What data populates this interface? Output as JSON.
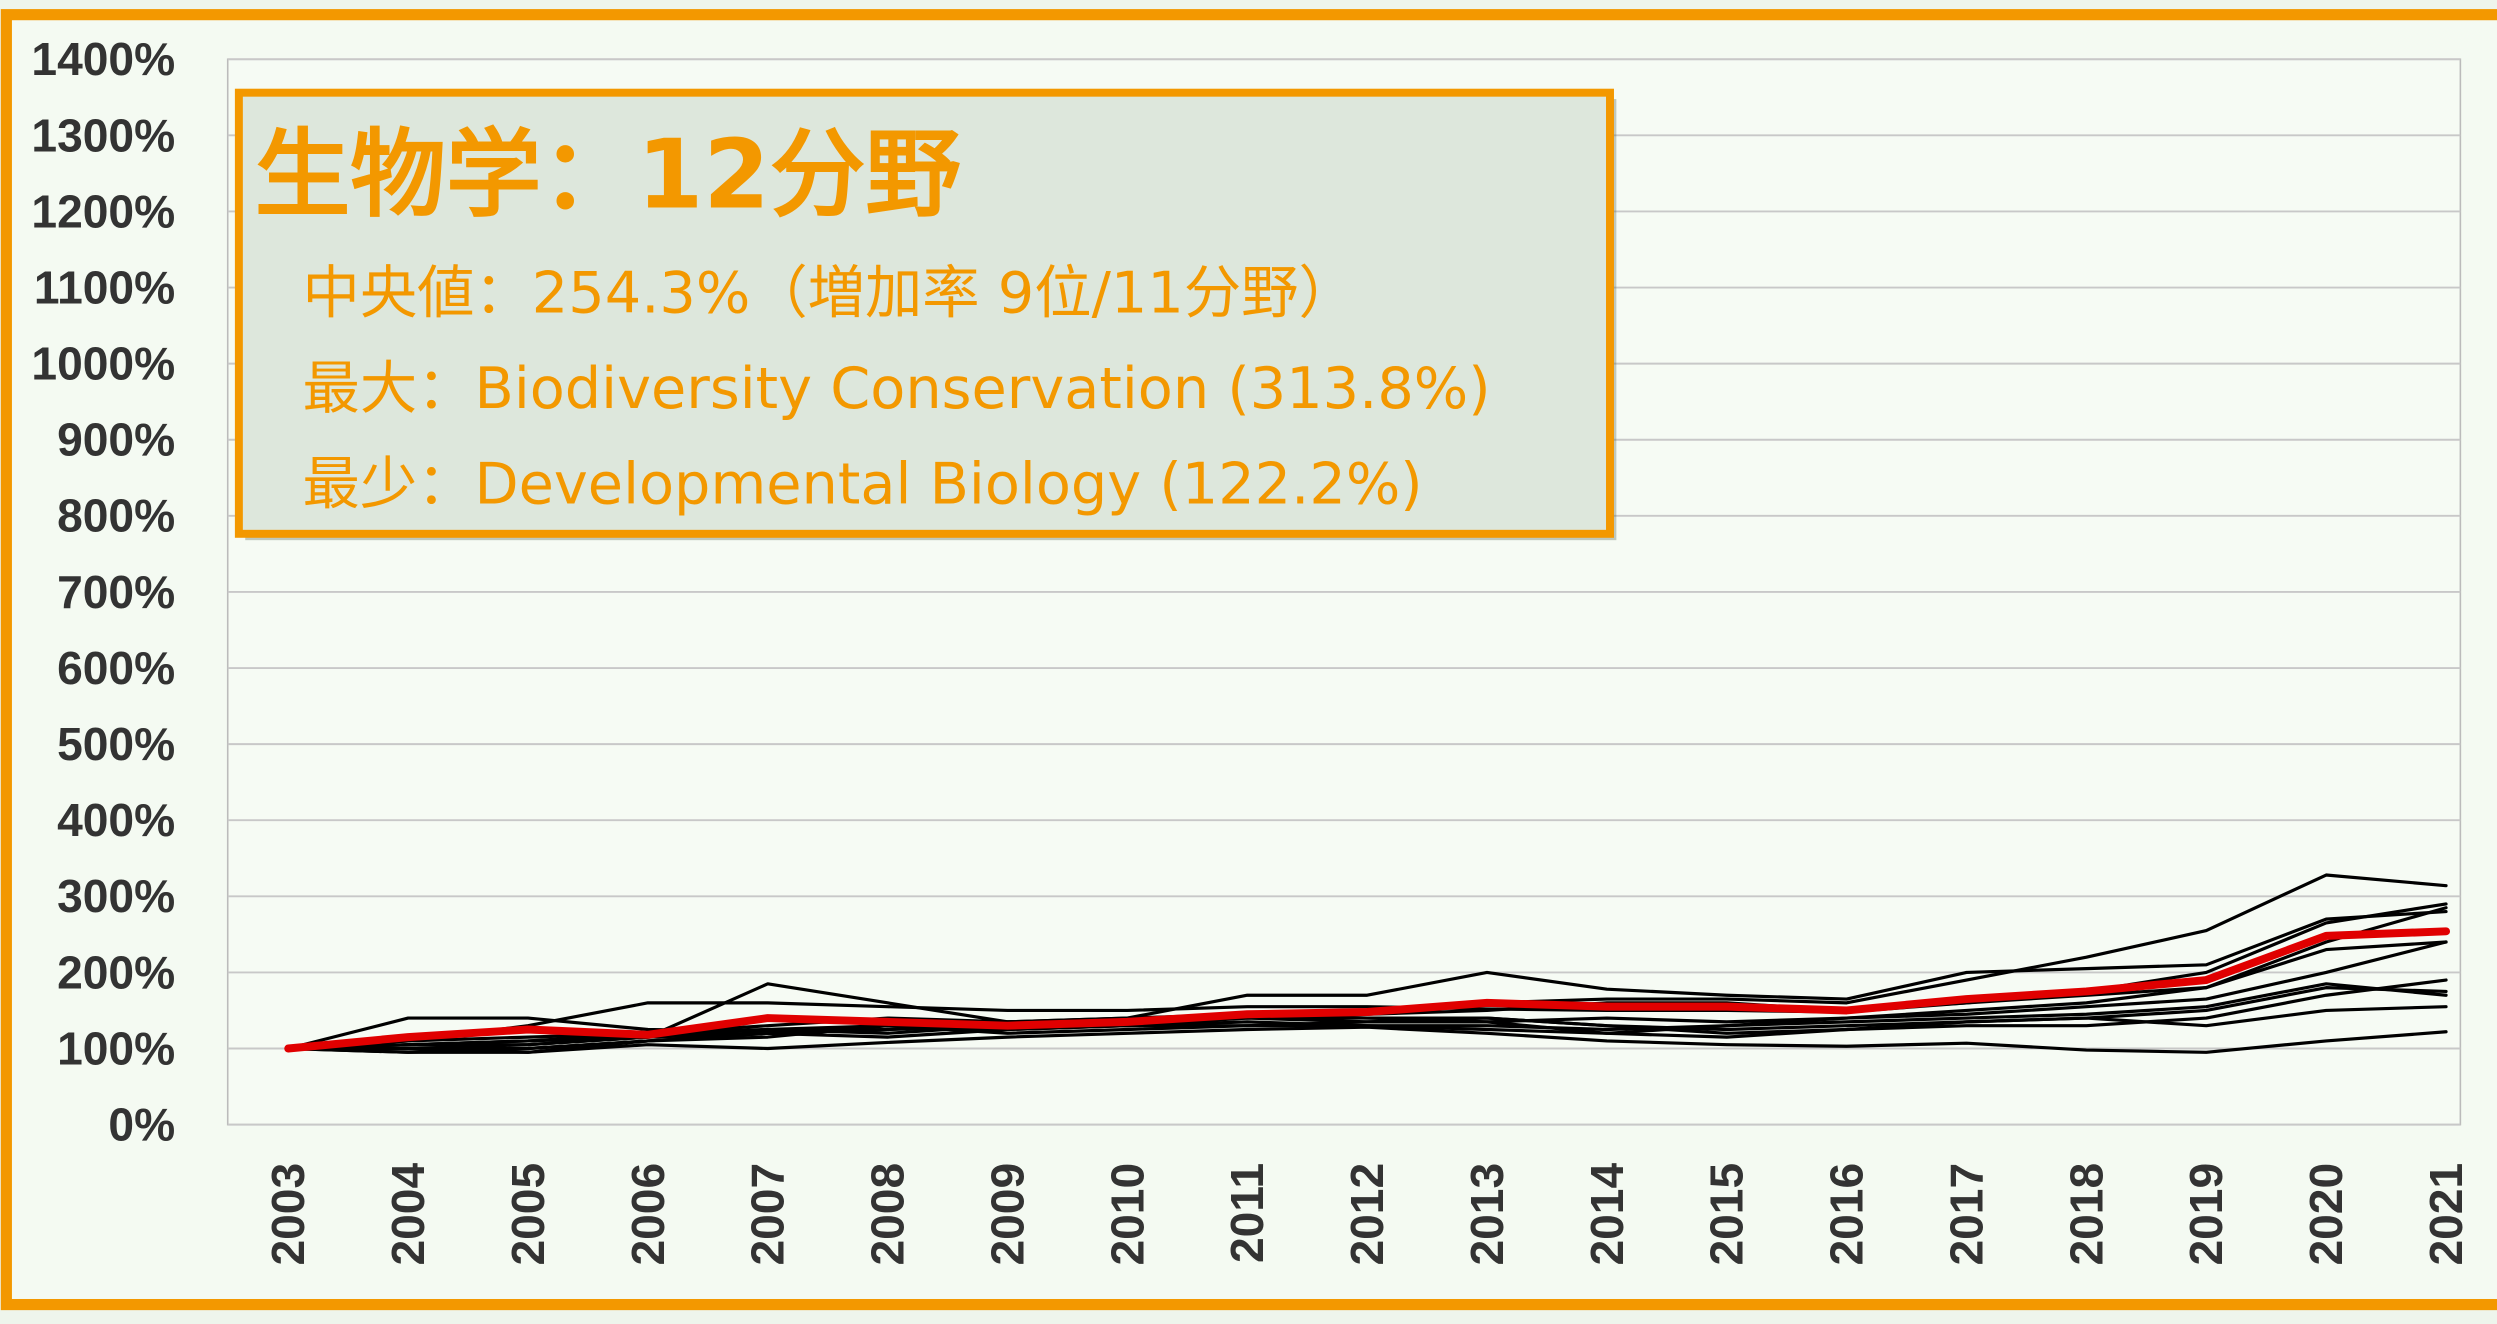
{
  "chart_data": {
    "type": "line",
    "annotation": {
      "title": "生物学：12分野",
      "lines": [
        "中央値：254.3%（増加率 9位/11分野）",
        "最大：Biodiversity Conservation (313.8%)",
        "最少：Developmental Biology (122.2%)"
      ]
    },
    "categories": [
      "2003",
      "2004",
      "2005",
      "2006",
      "2007",
      "2008",
      "2009",
      "2010",
      "2011",
      "2012",
      "2013",
      "2014",
      "2015",
      "2016",
      "2017",
      "2018",
      "2019",
      "2020",
      "2021"
    ],
    "ylim": [
      0,
      1400
    ],
    "yticks": [
      {
        "value": 0,
        "label": "0%"
      },
      {
        "value": 100,
        "label": "100%"
      },
      {
        "value": 200,
        "label": "200%"
      },
      {
        "value": 300,
        "label": "300%"
      },
      {
        "value": 400,
        "label": "400%"
      },
      {
        "value": 500,
        "label": "500%"
      },
      {
        "value": 600,
        "label": "600%"
      },
      {
        "value": 700,
        "label": "700%"
      },
      {
        "value": 800,
        "label": "800%"
      },
      {
        "value": 900,
        "label": "900%"
      },
      {
        "value": 1000,
        "label": "1000%"
      },
      {
        "value": 1100,
        "label": "1100%"
      },
      {
        "value": 1200,
        "label": "1200%"
      },
      {
        "value": 1300,
        "label": "1300%"
      },
      {
        "value": 1400,
        "label": "1400%"
      }
    ],
    "grid": true,
    "series": [
      {
        "color": "#000000",
        "values": [
          100,
          140,
          140,
          125,
          122,
          125,
          130,
          135,
          145,
          150,
          160,
          165,
          165,
          160,
          190,
          220,
          255,
          328,
          314
        ]
      },
      {
        "color": "#000000",
        "values": [
          100,
          95,
          95,
          105,
          100,
          108,
          115,
          120,
          125,
          128,
          120,
          110,
          105,
          103,
          107,
          98,
          95,
          110,
          122
        ]
      },
      {
        "color": "#000000",
        "values": [
          100,
          110,
          130,
          160,
          160,
          155,
          150,
          150,
          155,
          155,
          152,
          150,
          150,
          148,
          160,
          175,
          200,
          265,
          290
        ]
      },
      {
        "color": "#000000",
        "values": [
          100,
          105,
          105,
          115,
          185,
          160,
          135,
          140,
          170,
          170,
          200,
          178,
          170,
          165,
          200,
          205,
          210,
          270,
          280
        ]
      },
      {
        "color": "#000000",
        "values": [
          100,
          100,
          100,
          110,
          120,
          130,
          125,
          130,
          130,
          135,
          135,
          140,
          135,
          140,
          150,
          160,
          180,
          240,
          285
        ]
      },
      {
        "color": "#000000",
        "values": [
          100,
          105,
          110,
          120,
          125,
          120,
          130,
          140,
          140,
          145,
          150,
          160,
          160,
          150,
          160,
          170,
          180,
          230,
          240
        ]
      },
      {
        "color": "#000000",
        "values": [
          100,
          100,
          95,
          110,
          115,
          130,
          120,
          125,
          130,
          130,
          125,
          120,
          115,
          125,
          130,
          130,
          140,
          170,
          190
        ]
      },
      {
        "color": "#000000",
        "values": [
          100,
          105,
          110,
          115,
          120,
          125,
          130,
          130,
          135,
          130,
          130,
          125,
          130,
          135,
          140,
          145,
          155,
          185,
          170
        ]
      },
      {
        "color": "#000000",
        "values": [
          100,
          95,
          100,
          110,
          120,
          115,
          125,
          130,
          140,
          135,
          140,
          130,
          120,
          125,
          135,
          140,
          150,
          180,
          175
        ]
      },
      {
        "color": "#000000",
        "values": [
          100,
          110,
          115,
          120,
          130,
          140,
          135,
          140,
          145,
          140,
          140,
          130,
          125,
          130,
          135,
          140,
          130,
          150,
          155
        ]
      },
      {
        "color": "#000000",
        "values": [
          100,
          100,
          105,
          115,
          125,
          130,
          135,
          135,
          140,
          140,
          135,
          120,
          130,
          140,
          145,
          155,
          165,
          200,
          240
        ]
      },
      {
        "color": "#e00000",
        "values": [
          100,
          115,
          125,
          118,
          140,
          135,
          130,
          135,
          145,
          148,
          160,
          155,
          155,
          150,
          165,
          175,
          190,
          248,
          254
        ]
      }
    ]
  }
}
